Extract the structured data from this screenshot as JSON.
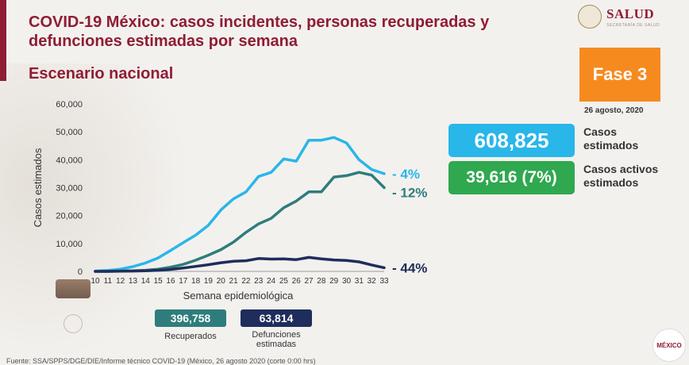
{
  "header": {
    "title": "COVID-19 México: casos incidentes, personas recuperadas y defunciones estimadas por semana",
    "subtitle": "Escenario nacional",
    "logo_text": "SALUD",
    "logo_subtext": "SECRETARÍA DE SALUD",
    "phase": "Fase 3",
    "date": "26 agosto, 2020"
  },
  "summary": {
    "cases_value": "608,825",
    "cases_label_1": "Casos",
    "cases_label_2": "estimados",
    "active_value": "39,616 (7%)",
    "active_label_1": "Casos activos",
    "active_label_2": "estimados"
  },
  "totals": {
    "recovered_value": "396,758",
    "recovered_label": "Recuperados",
    "deaths_value": "63,814",
    "deaths_label_1": "Defunciones",
    "deaths_label_2": "estimadas"
  },
  "footer": {
    "source": "Fuente: SSA/SPPS/DGE/DIE/Informe técnico COVID-19 (México, 26 agosto 2020 (corte 0:00 hrs)",
    "mexico_logo": "MÉXICO"
  },
  "colors": {
    "brand": "#8f1d34",
    "cases": "#29b6e9",
    "active": "#2fa84f",
    "recovered": "#2e7d7c",
    "deaths": "#1f2d5c",
    "phase": "#f68a1f"
  },
  "chart_data": {
    "type": "line",
    "xlabel": "Semana epidemiológica",
    "ylabel": "Casos estimados",
    "ylim": [
      0,
      60000
    ],
    "yticks": [
      0,
      10000,
      20000,
      30000,
      40000,
      50000,
      60000
    ],
    "ytick_labels": [
      "0",
      "10,000",
      "20,000",
      "30,000",
      "40,000",
      "50,000",
      "60,000"
    ],
    "x": [
      10,
      11,
      12,
      13,
      14,
      15,
      16,
      17,
      18,
      19,
      20,
      21,
      22,
      23,
      24,
      25,
      26,
      27,
      28,
      29,
      30,
      31,
      32,
      33
    ],
    "grid": false,
    "series": [
      {
        "color": "#29b6e9",
        "end_label": "- 4%",
        "values": [
          100,
          300,
          800,
          1700,
          3000,
          4800,
          7500,
          10300,
          13000,
          16500,
          22000,
          26000,
          28500,
          34000,
          35500,
          40300,
          39500,
          47000,
          47000,
          48000,
          46000,
          40000,
          36500,
          35000
        ]
      },
      {
        "color": "#2e7d7c",
        "end_label": "- 12%",
        "values": [
          0,
          0,
          100,
          200,
          400,
          800,
          1500,
          2500,
          4000,
          5800,
          7800,
          10500,
          14000,
          17000,
          19000,
          22800,
          25200,
          28500,
          28500,
          33800,
          34300,
          35500,
          34500,
          30000
        ]
      },
      {
        "color": "#1f2d5c",
        "end_label": "- 44%",
        "values": [
          0,
          0,
          50,
          100,
          200,
          400,
          700,
          1200,
          1800,
          2400,
          3100,
          3600,
          3800,
          4600,
          4400,
          4500,
          4200,
          5000,
          4500,
          4100,
          3900,
          3400,
          2300,
          1300
        ]
      }
    ]
  }
}
